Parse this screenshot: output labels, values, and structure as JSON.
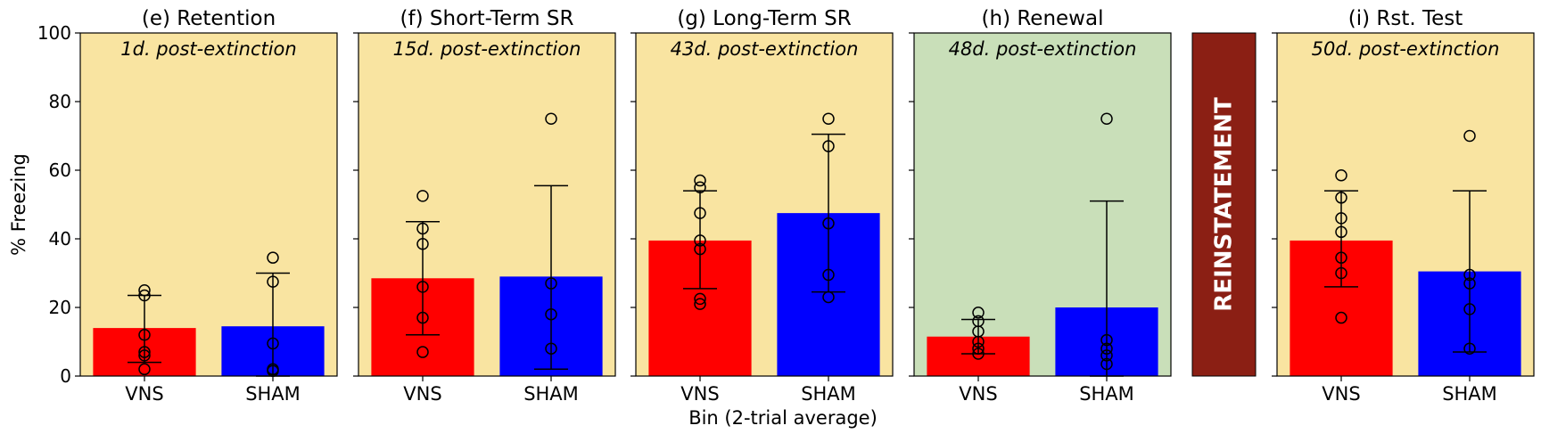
{
  "figure": {
    "ylabel": "% Freezing",
    "xlabel": "Bin (2-trial average)",
    "yticks": [
      0,
      20,
      40,
      60,
      80,
      100
    ],
    "ylim": [
      0,
      100
    ],
    "reinstatement_label": "REINSTATEMENT",
    "reinstatement_color": "#8b1f14"
  },
  "colors": {
    "VNS": "#ff0000",
    "SHAM": "#0000ff",
    "extinction_bg": "#f9e4a1",
    "renewal_bg": "#c9dfb9"
  },
  "chart_data": [
    {
      "type": "bar",
      "title": "(e) Retention",
      "subtitle": "1d. post-extinction",
      "background": "extinction_bg",
      "categories": [
        "VNS",
        "SHAM"
      ],
      "values": [
        14,
        14.5
      ],
      "error": [
        [
          4,
          23.5
        ],
        [
          0,
          30
        ]
      ],
      "points": [
        [
          25,
          23.5,
          12,
          7,
          6,
          2
        ],
        [
          34.5,
          27.5,
          9.5,
          2,
          1.5
        ]
      ],
      "ylim": [
        0,
        100
      ]
    },
    {
      "type": "bar",
      "title": "(f) Short-Term SR",
      "subtitle": "15d. post-extinction",
      "background": "extinction_bg",
      "categories": [
        "VNS",
        "SHAM"
      ],
      "values": [
        28.5,
        29
      ],
      "error": [
        [
          12,
          45
        ],
        [
          2,
          55.5
        ]
      ],
      "points": [
        [
          52.5,
          43,
          38.5,
          26,
          17,
          7
        ],
        [
          75,
          27,
          18,
          8
        ]
      ],
      "ylim": [
        0,
        100
      ]
    },
    {
      "type": "bar",
      "title": "(g) Long-Term SR",
      "subtitle": "43d. post-extinction",
      "background": "extinction_bg",
      "categories": [
        "VNS",
        "SHAM"
      ],
      "values": [
        39.5,
        47.5
      ],
      "error": [
        [
          25.5,
          54
        ],
        [
          24.5,
          70.5
        ]
      ],
      "points": [
        [
          57,
          55,
          47.5,
          39.5,
          37,
          22.5,
          21
        ],
        [
          75,
          67,
          44.5,
          29.5,
          23
        ]
      ],
      "ylim": [
        0,
        100
      ]
    },
    {
      "type": "bar",
      "title": "(h) Renewal",
      "subtitle": "48d. post-extinction",
      "background": "renewal_bg",
      "categories": [
        "VNS",
        "SHAM"
      ],
      "values": [
        11.5,
        20
      ],
      "error": [
        [
          6.5,
          16.5
        ],
        [
          0,
          51
        ]
      ],
      "points": [
        [
          18.5,
          16,
          13,
          10,
          8,
          6.5
        ],
        [
          75,
          10.5,
          8,
          6,
          3.5
        ]
      ],
      "ylim": [
        0,
        100
      ]
    },
    {
      "type": "bar",
      "title": "(i) Rst. Test",
      "subtitle": "50d. post-extinction",
      "background": "extinction_bg",
      "categories": [
        "VNS",
        "SHAM"
      ],
      "values": [
        39.5,
        30.5
      ],
      "error": [
        [
          26,
          54
        ],
        [
          7,
          54
        ]
      ],
      "points": [
        [
          58.5,
          52,
          46,
          42,
          34.5,
          30,
          17
        ],
        [
          70,
          29.5,
          27,
          19.5,
          8
        ]
      ],
      "ylim": [
        0,
        100
      ]
    }
  ]
}
